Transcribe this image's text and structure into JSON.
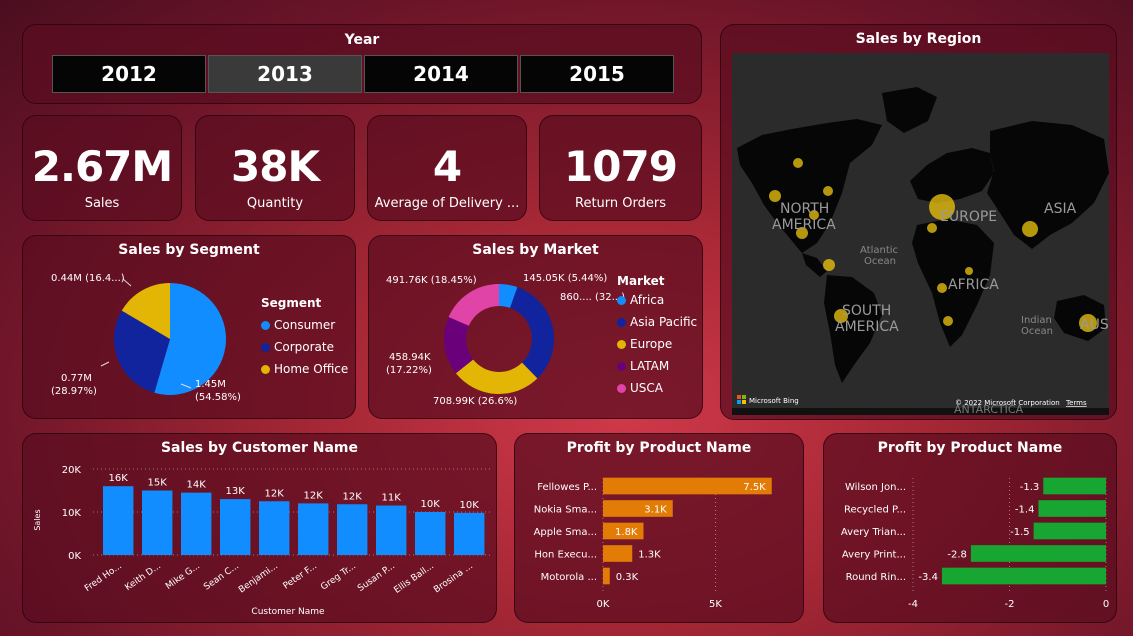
{
  "year_slicer": {
    "title": "Year",
    "options": [
      "2012",
      "2013",
      "2014",
      "2015"
    ],
    "selected": "2013"
  },
  "kpis": [
    {
      "value": "2.67M",
      "label": "Sales"
    },
    {
      "value": "38K",
      "label": "Quantity"
    },
    {
      "value": "4",
      "label": "Average of Delivery ..."
    },
    {
      "value": "1079",
      "label": "Return Orders"
    }
  ],
  "segment_chart": {
    "title": "Sales by Segment",
    "legend_title": "Segment",
    "labels": {
      "home_office": "0.44M (16.4...)",
      "corporate_1": "0.77M",
      "corporate_2": "(28.97%)",
      "consumer_1": "1.45M",
      "consumer_2": "(54.58%)"
    },
    "colors": {
      "Consumer": "#118dff",
      "Corporate": "#12239e",
      "Home Office": "#e3b505"
    }
  },
  "market_chart": {
    "title": "Sales by Market",
    "legend_title": "Market",
    "labels": {
      "usca": "491.76K (18.45%)",
      "africa": "145.05K (5.44%)",
      "asia_pacific": "860.... (32...)",
      "latam_1": "458.94K",
      "latam_2": "(17.22%)",
      "europe": "708.99K (26.6%)"
    },
    "colors": {
      "Africa": "#118dff",
      "Asia Pacific": "#12239e",
      "Europe": "#e3b505",
      "LATAM": "#6b007b",
      "USCA": "#e044a7"
    }
  },
  "map": {
    "title": "Sales by Region",
    "labels": {
      "north_america_1": "NORTH",
      "north_america_2": "AMERICA",
      "south_america_1": "SOUTH",
      "south_america_2": "AMERICA",
      "europe": "EUROPE",
      "asia": "ASIA",
      "africa": "AFRICA",
      "aus": "AUS",
      "antarctica": "ANTARCTICA",
      "atlantic_1": "Atlantic",
      "atlantic_2": "Ocean",
      "indian_1": "Indian",
      "indian_2": "Ocean"
    },
    "brand": "Microsoft Bing",
    "copyright": "© 2022 Microsoft Corporation",
    "terms": "Terms"
  },
  "customer_chart": {
    "title": "Sales by Customer Name",
    "ylabel": "Sales",
    "xlabel": "Customer Name"
  },
  "profit_top_chart": {
    "title": "Profit by Product Name"
  },
  "profit_bottom_chart": {
    "title": "Profit by Product Name"
  },
  "chart_data": [
    {
      "type": "pie",
      "title": "Sales by Segment",
      "categories": [
        "Consumer",
        "Corporate",
        "Home Office"
      ],
      "values": [
        1.45,
        0.77,
        0.44
      ],
      "percent": [
        54.58,
        28.97,
        16.45
      ],
      "unit": "M",
      "legend": "right"
    },
    {
      "type": "pie",
      "subtype": "donut",
      "title": "Sales by Market",
      "categories": [
        "Africa",
        "Asia Pacific",
        "Europe",
        "LATAM",
        "USCA"
      ],
      "values": [
        145.05,
        860,
        708.99,
        458.94,
        491.76
      ],
      "percent": [
        5.44,
        32.3,
        26.6,
        17.22,
        18.45
      ],
      "unit": "K",
      "legend": "right"
    },
    {
      "type": "bar",
      "title": "Sales by Customer Name",
      "categories": [
        "Fred Ho...",
        "Keith D...",
        "Mike G...",
        "Sean C...",
        "Benjami...",
        "Peter F...",
        "Greg Tr...",
        "Susan P...",
        "Ellis Ball...",
        "Brosina ..."
      ],
      "values": [
        16000,
        15000,
        14500,
        13000,
        12500,
        12000,
        11800,
        11500,
        10000,
        9800
      ],
      "data_labels": [
        "16K",
        "15K",
        "14K",
        "13K",
        "12K",
        "12K",
        "12K",
        "11K",
        "10K",
        "10K"
      ],
      "yticks": [
        "0K",
        "10K",
        "20K"
      ],
      "ylim": [
        0,
        20000
      ],
      "xlabel": "Customer Name",
      "ylabel": "Sales",
      "color": "#118dff"
    },
    {
      "type": "bar",
      "orientation": "horizontal",
      "title": "Profit by Product Name",
      "categories": [
        "Fellowes P...",
        "Nokia Sma...",
        "Apple Sma...",
        "Hon Execu...",
        "Motorola ..."
      ],
      "values": [
        7500,
        3100,
        1800,
        1300,
        300
      ],
      "data_labels": [
        "7.5K",
        "3.1K",
        "1.8K",
        "1.3K",
        "0.3K"
      ],
      "xticks": [
        "0K",
        "5K"
      ],
      "xlim": [
        0,
        8000
      ],
      "color": "#e37c06"
    },
    {
      "type": "bar",
      "orientation": "horizontal",
      "title": "Profit by Product Name",
      "categories": [
        "Wilson Jon...",
        "Recycled P...",
        "Avery Trian...",
        "Avery Print...",
        "Round Rin..."
      ],
      "values": [
        -1.3,
        -1.4,
        -1.5,
        -2.8,
        -3.4
      ],
      "data_labels": [
        "-1.3",
        "-1.4",
        "-1.5",
        "-2.8",
        "-3.4"
      ],
      "xticks": [
        "-4",
        "-2",
        "0"
      ],
      "xlim": [
        -4,
        0
      ],
      "color": "#17a631"
    }
  ]
}
